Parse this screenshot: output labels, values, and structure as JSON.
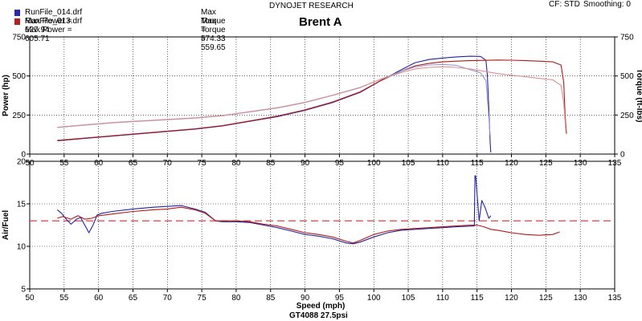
{
  "header": {
    "company": "DYNOJET RESEARCH",
    "cf_label": "CF: STD",
    "smoothing_label": "Smoothing: 0",
    "title": "Brent A",
    "footer": "GT4088 27.5psi"
  },
  "legend": [
    {
      "file": "RunFile_014.drf Max Power = 627.94",
      "torque": "Max Torque = 574.33",
      "color": "#2a2aa8"
    },
    {
      "file": "RunFile_013.drf Max Power = 605.71",
      "torque": "Max Torque = 559.65",
      "color": "#b22222"
    }
  ],
  "colors": {
    "run014": "#2323a0",
    "run013": "#b01818",
    "run014_light": "#9a9ad0",
    "run013_light": "#d99090",
    "grid": "#000000",
    "afr_ref": "#c83030"
  },
  "chart_data": [
    {
      "type": "line",
      "xlabel": "Speed (mph)",
      "ylabel": "Power (hp)",
      "y2label": "Torque (ft-lbs)",
      "xlim": [
        50,
        135
      ],
      "ylim": [
        0,
        750
      ],
      "y2lim": [
        0,
        750
      ],
      "x_ticks": [
        50,
        55,
        60,
        65,
        70,
        75,
        80,
        85,
        90,
        95,
        100,
        105,
        110,
        115,
        120,
        125,
        130,
        135
      ],
      "y_ticks": [
        0,
        250,
        500,
        750
      ],
      "y2_ticks": [
        0,
        250,
        500,
        750
      ],
      "grid": true,
      "series": [
        {
          "name": "RunFile_014.drf Max Power = 627.94",
          "color": "#2323a0",
          "x": [
            54,
            58,
            62,
            66,
            70,
            74,
            78,
            82,
            86,
            90,
            94,
            98,
            101,
            104,
            106,
            108,
            110,
            112,
            114,
            115.5,
            116.3,
            116.5,
            116.7,
            116.9,
            117.0
          ],
          "y": [
            85,
            100,
            115,
            130,
            145,
            160,
            180,
            210,
            240,
            280,
            330,
            395,
            470,
            540,
            585,
            605,
            615,
            622,
            626,
            625,
            600,
            500,
            300,
            80,
            10
          ]
        },
        {
          "name": "RunFile_013.drf Max Power = 605.71",
          "color": "#b01818",
          "x": [
            54,
            58,
            62,
            66,
            70,
            74,
            78,
            82,
            86,
            90,
            94,
            98,
            101,
            104,
            106,
            108,
            110,
            112,
            114,
            116,
            118,
            120,
            122,
            124,
            126,
            127.2,
            127.6,
            127.8,
            128.0
          ],
          "y": [
            88,
            102,
            117,
            132,
            147,
            162,
            182,
            212,
            243,
            283,
            333,
            398,
            470,
            530,
            565,
            580,
            590,
            595,
            598,
            600,
            602,
            601,
            598,
            595,
            590,
            570,
            460,
            250,
            130
          ]
        },
        {
          "name": "Torque RunFile_014",
          "color": "#9a9ad0",
          "x": [
            54,
            58,
            62,
            66,
            70,
            74,
            78,
            82,
            86,
            90,
            94,
            98,
            101,
            104,
            106,
            108,
            110,
            112,
            114,
            115.5,
            116.3,
            116.6,
            116.9
          ],
          "y": [
            170,
            185,
            200,
            210,
            220,
            230,
            245,
            270,
            295,
            330,
            375,
            425,
            480,
            530,
            558,
            570,
            574,
            568,
            540,
            520,
            470,
            300,
            120
          ]
        },
        {
          "name": "Torque RunFile_013",
          "color": "#d99090",
          "x": [
            54,
            58,
            62,
            66,
            70,
            74,
            78,
            82,
            86,
            90,
            94,
            98,
            101,
            104,
            106,
            108,
            110,
            112,
            114,
            116,
            118,
            120,
            122,
            124,
            126,
            127.2,
            127.6,
            127.9
          ],
          "y": [
            172,
            187,
            202,
            212,
            222,
            232,
            247,
            272,
            297,
            332,
            377,
            427,
            478,
            522,
            545,
            555,
            559,
            555,
            545,
            530,
            515,
            505,
            495,
            485,
            475,
            440,
            330,
            150
          ]
        }
      ]
    },
    {
      "type": "line",
      "xlabel": "Speed (mph)",
      "ylabel": "Air/Fuel",
      "xlim": [
        50,
        135
      ],
      "ylim": [
        5,
        20
      ],
      "x_ticks": [
        50,
        55,
        60,
        65,
        70,
        75,
        80,
        85,
        90,
        95,
        100,
        105,
        110,
        115,
        120,
        125,
        130,
        135
      ],
      "y_ticks": [
        5,
        10,
        15,
        20
      ],
      "grid": true,
      "reference_line": 13,
      "series": [
        {
          "name": "AFR RunFile_014",
          "color": "#2323a0",
          "x": [
            54,
            54.6,
            55.3,
            56,
            56.8,
            57.4,
            58,
            58.6,
            59.2,
            59.8,
            60.5,
            62,
            65,
            68,
            70,
            72,
            74,
            75.5,
            77,
            78,
            80,
            82,
            84,
            86,
            88,
            90,
            92,
            94,
            96,
            97,
            98,
            100,
            102,
            104,
            106,
            108,
            110,
            112,
            114.6,
            114.7,
            114.8,
            115.3,
            115.7,
            116.2,
            116.7,
            117
          ],
          "y": [
            14.3,
            13.9,
            13.2,
            12.6,
            13.2,
            13.4,
            12.5,
            11.6,
            12.5,
            13.7,
            13.9,
            14.1,
            14.4,
            14.6,
            14.7,
            14.8,
            14.4,
            14.0,
            13.0,
            12.9,
            12.9,
            12.8,
            12.5,
            12.2,
            11.8,
            11.4,
            11.2,
            10.9,
            10.4,
            10.3,
            10.5,
            11.1,
            11.6,
            11.9,
            12.0,
            12.1,
            12.2,
            12.3,
            12.4,
            18.3,
            18.3,
            13.0,
            15.4,
            14.5,
            13.3,
            13.6
          ]
        },
        {
          "name": "AFR RunFile_013",
          "color": "#b01818",
          "x": [
            54,
            54.8,
            56,
            57,
            58,
            59,
            60,
            62,
            65,
            68,
            70,
            72,
            74,
            75.5,
            77,
            78,
            80,
            82,
            84,
            86,
            88,
            90,
            92,
            94,
            96,
            97,
            98,
            100,
            102,
            104,
            106,
            108,
            110,
            112,
            114,
            115,
            116,
            117,
            118,
            120,
            122,
            124,
            126,
            127
          ],
          "y": [
            13.3,
            13.5,
            13.2,
            13.6,
            13.2,
            13.3,
            13.6,
            13.8,
            14.1,
            14.3,
            14.4,
            14.6,
            14.3,
            13.9,
            13.0,
            13.0,
            13.0,
            12.9,
            12.6,
            12.4,
            12.0,
            11.6,
            11.4,
            11.1,
            10.6,
            10.4,
            10.7,
            11.4,
            11.8,
            12.0,
            12.1,
            12.2,
            12.3,
            12.4,
            12.5,
            12.5,
            12.3,
            12.0,
            11.9,
            11.6,
            11.4,
            11.3,
            11.4,
            11.7
          ]
        }
      ]
    }
  ]
}
